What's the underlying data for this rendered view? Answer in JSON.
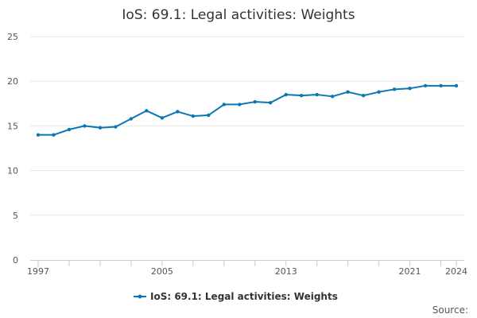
{
  "chart_data": {
    "type": "line",
    "title": "IoS: 69.1: Legal activities: Weights",
    "x": [
      1997,
      1998,
      1999,
      2000,
      2001,
      2002,
      2003,
      2004,
      2005,
      2006,
      2007,
      2008,
      2009,
      2010,
      2011,
      2012,
      2013,
      2014,
      2015,
      2016,
      2017,
      2018,
      2019,
      2020,
      2021,
      2022,
      2023,
      2024
    ],
    "series": [
      {
        "name": "IoS: 69.1: Legal activities: Weights",
        "color": "#0a77b5",
        "values": [
          14.0,
          14.0,
          14.6,
          15.0,
          14.8,
          14.9,
          15.8,
          16.7,
          15.9,
          16.6,
          16.1,
          16.2,
          17.4,
          17.4,
          17.7,
          17.6,
          18.5,
          18.4,
          18.5,
          18.3,
          18.8,
          18.4,
          18.8,
          19.1,
          19.2,
          19.5,
          19.5,
          19.5
        ]
      }
    ],
    "xticks": [
      "1997",
      "2005",
      "2013",
      "2021",
      "2024"
    ],
    "yticks": [
      "0",
      "5",
      "10",
      "15",
      "20",
      "25"
    ],
    "ylim": [
      0,
      25
    ],
    "grid": true,
    "legend": "bottom-center"
  },
  "source_label": "Source:"
}
